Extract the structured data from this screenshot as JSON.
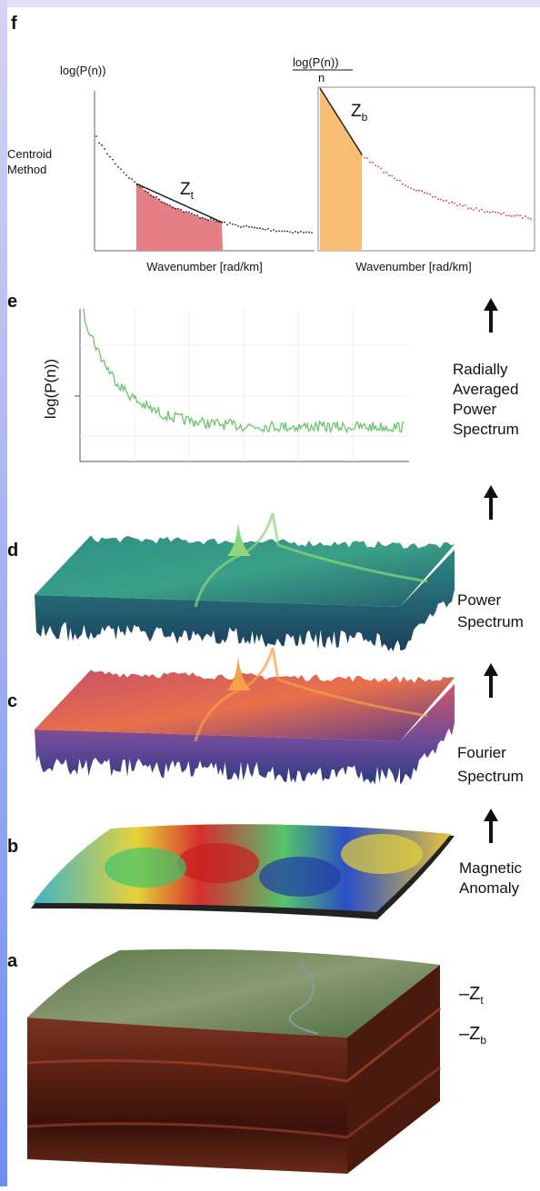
{
  "panel_f": {
    "label": "f",
    "left_chart": {
      "y_label": "log(P(n))",
      "row_label": [
        "Centroid",
        "Method"
      ],
      "depth": {
        "symbol": "Z",
        "subscript": "t"
      },
      "x_label": "Wavenumber [rad/km]"
    },
    "right_chart": {
      "y_label_numerator": "log(P(n))",
      "y_label_denominator": "n",
      "depth": {
        "symbol": "Z",
        "subscript": "b"
      },
      "x_label": "Wavenumber [rad/km]"
    }
  },
  "panel_e": {
    "label": "e",
    "y_label": "log(P(n))",
    "caption": [
      "Radially",
      "Averaged",
      "Power",
      "Spectrum"
    ]
  },
  "panel_d": {
    "label": "d",
    "caption": [
      "Power",
      "Spectrum"
    ]
  },
  "panel_c": {
    "label": "c",
    "caption": [
      "Fourier",
      "Spectrum"
    ]
  },
  "panel_b": {
    "label": "b",
    "caption": [
      "Magnetic",
      "Anomaly"
    ]
  },
  "panel_a": {
    "label": "a",
    "depth_top": {
      "prefix": "–",
      "symbol": "Z",
      "subscript": "t"
    },
    "depth_bottom": {
      "prefix": "–",
      "symbol": "Z",
      "subscript": "b"
    }
  }
}
